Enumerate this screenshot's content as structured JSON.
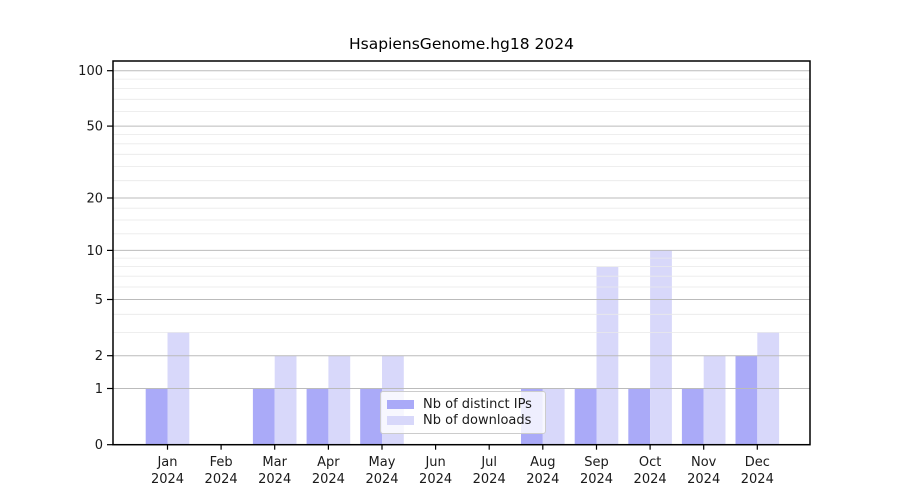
{
  "chart_data": {
    "type": "bar",
    "title": "HsapiensGenome.hg18 2024",
    "categories": [
      "Jan",
      "Feb",
      "Mar",
      "Apr",
      "May",
      "Jun",
      "Jul",
      "Aug",
      "Sep",
      "Oct",
      "Nov",
      "Dec"
    ],
    "x_tick_year": "2024",
    "series": [
      {
        "name": "Nb of distinct IPs",
        "color": "#aaaaf8",
        "values": [
          1,
          0,
          1,
          1,
          1,
          0,
          0,
          1,
          1,
          1,
          1,
          2
        ]
      },
      {
        "name": "Nb of downloads",
        "color": "#d8d8fa",
        "values": [
          3,
          0,
          2,
          2,
          2,
          0,
          0,
          1,
          8,
          10,
          2,
          3
        ]
      }
    ],
    "y_scale": "log1p",
    "y_ticks": [
      0,
      1,
      2,
      5,
      10,
      20,
      50,
      100
    ],
    "y_minor_gridlines": [
      3,
      4,
      6,
      7,
      8,
      9,
      12.5,
      15,
      17.5,
      25,
      30,
      35,
      40,
      45,
      60,
      70,
      80,
      90
    ],
    "ylim": [
      0,
      114
    ],
    "grid": "on",
    "legend_position": "lower center-right",
    "xlabel": "",
    "ylabel": "",
    "axis_color": "#000000",
    "major_grid_color": "#bbbbbb",
    "minor_grid_color": "#e9e9e9",
    "text_color": "#1a1a1a"
  }
}
